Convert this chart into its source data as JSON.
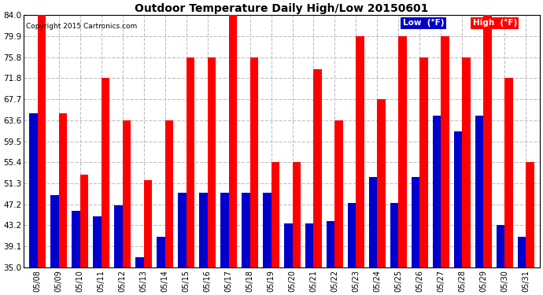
{
  "title": "Outdoor Temperature Daily High/Low 20150601",
  "copyright": "Copyright 2015 Cartronics.com",
  "legend_low": "Low  (°F)",
  "legend_high": "High  (°F)",
  "dates": [
    "05/08",
    "05/09",
    "05/10",
    "05/11",
    "05/12",
    "05/13",
    "05/14",
    "05/15",
    "05/16",
    "05/17",
    "05/18",
    "05/19",
    "05/20",
    "05/21",
    "05/22",
    "05/23",
    "05/24",
    "05/25",
    "05/26",
    "05/27",
    "05/28",
    "05/29",
    "05/30",
    "05/31"
  ],
  "highs": [
    84.0,
    65.0,
    53.0,
    71.8,
    63.5,
    52.0,
    63.6,
    75.8,
    75.8,
    84.0,
    75.8,
    55.4,
    55.4,
    73.5,
    63.6,
    79.9,
    67.7,
    79.9,
    75.8,
    79.9,
    75.8,
    84.0,
    71.8,
    55.4
  ],
  "lows": [
    65.0,
    49.0,
    46.0,
    45.0,
    47.0,
    37.0,
    41.0,
    49.5,
    49.5,
    49.5,
    49.5,
    49.5,
    43.5,
    43.5,
    44.0,
    47.5,
    52.5,
    47.5,
    52.5,
    64.5,
    61.5,
    64.5,
    43.2,
    41.0
  ],
  "ymin": 35.0,
  "ymax": 84.0,
  "yticks": [
    35.0,
    39.1,
    43.2,
    47.2,
    51.3,
    55.4,
    59.5,
    63.6,
    67.7,
    71.8,
    75.8,
    79.9,
    84.0
  ],
  "color_high": "#ff0000",
  "color_low": "#0000cc",
  "background_color": "#ffffff",
  "grid_color": "#c0c0c0"
}
